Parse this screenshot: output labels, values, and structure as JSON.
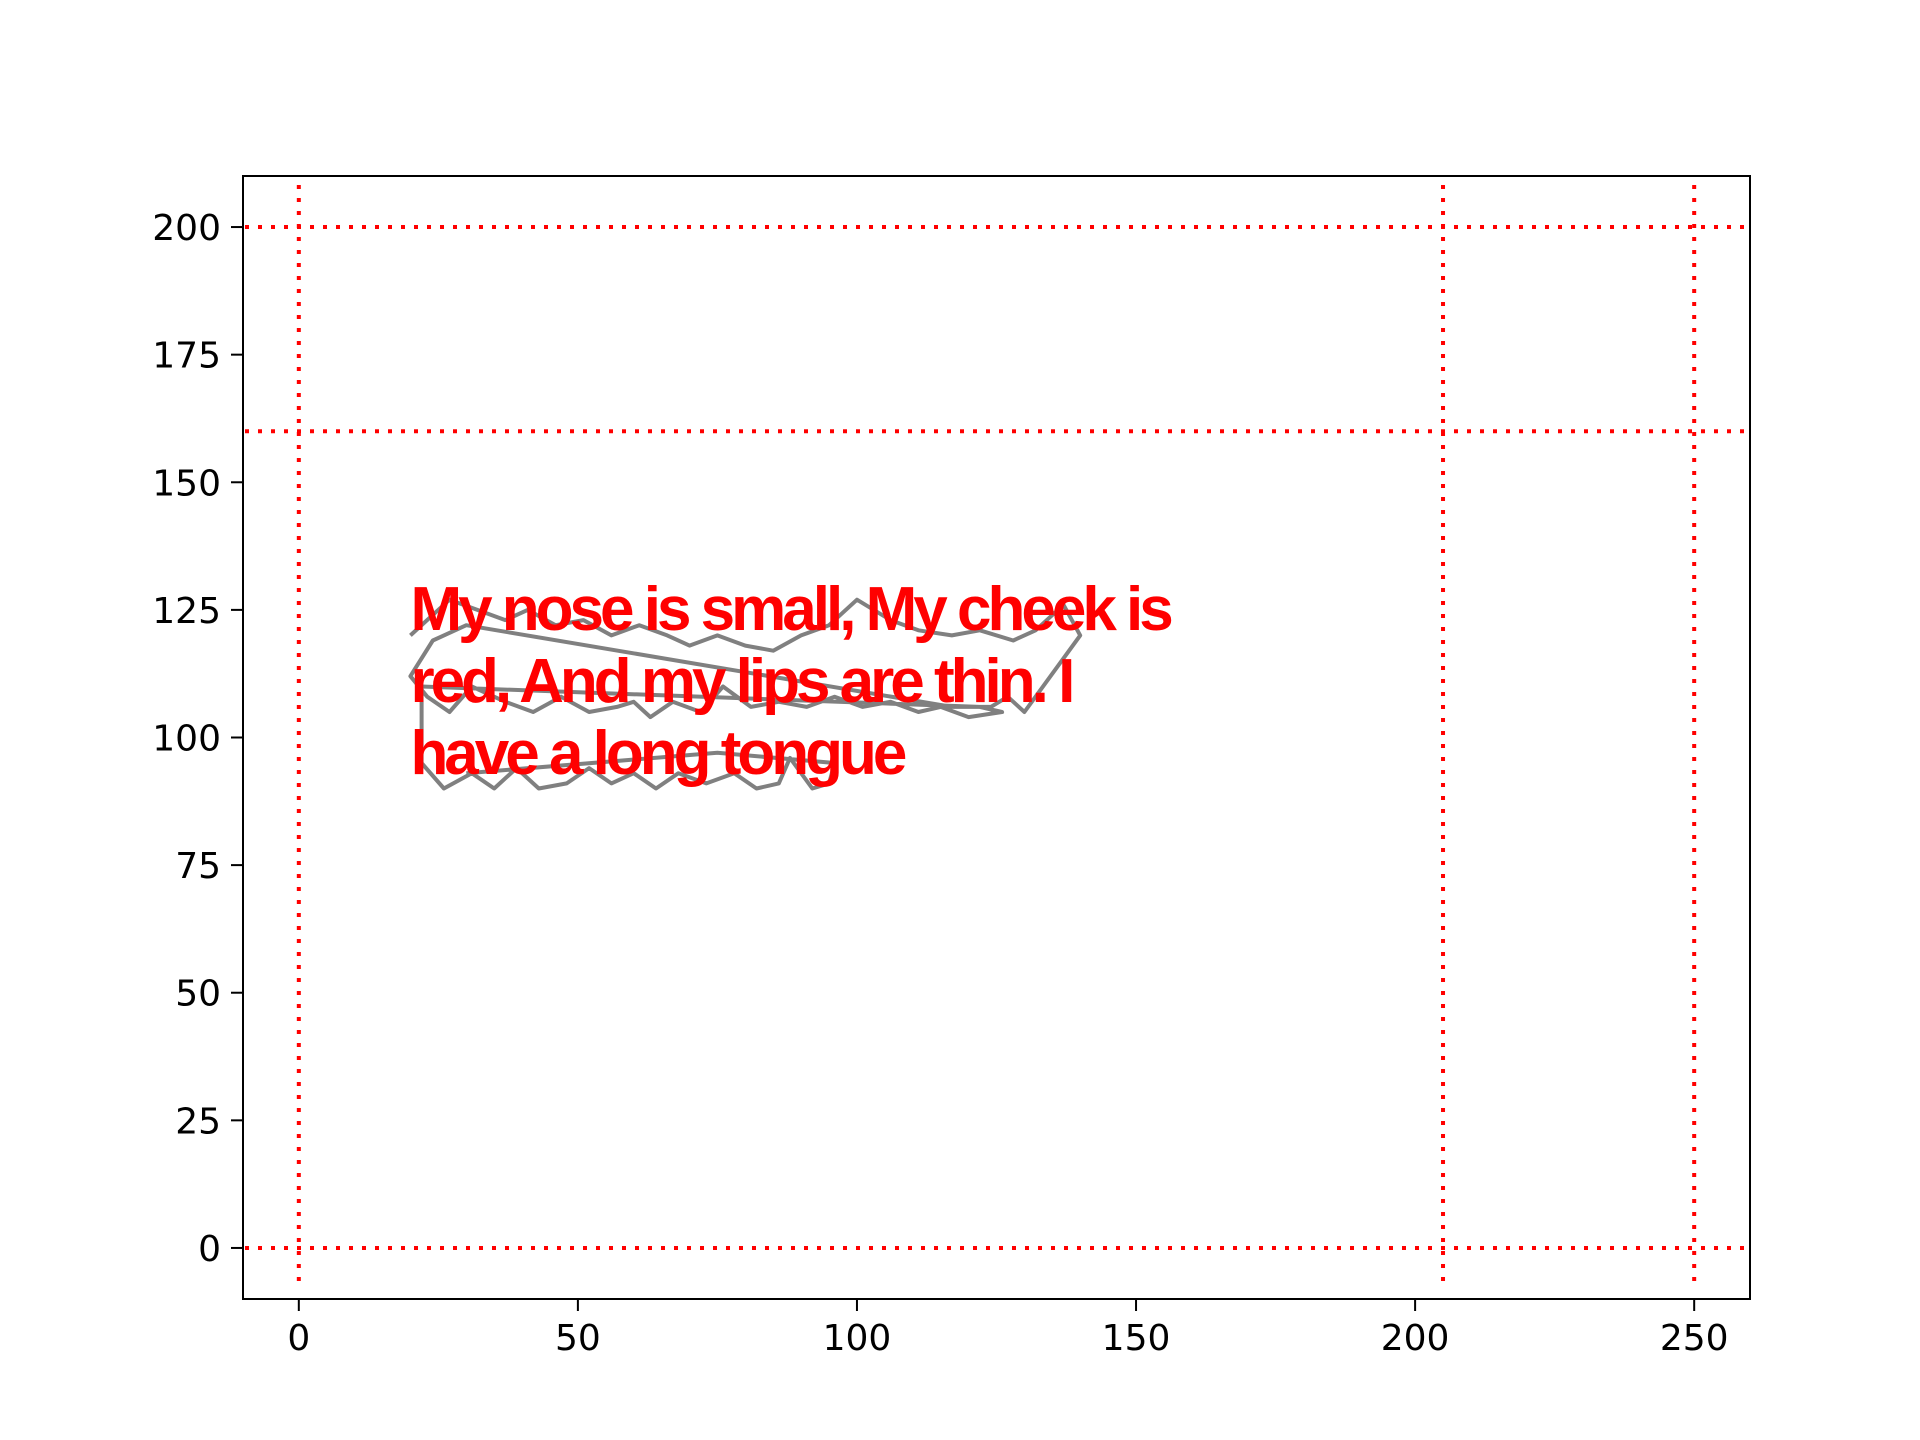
{
  "chart_data": {
    "type": "line",
    "title": "",
    "xlabel": "",
    "ylabel": "",
    "xlim": [
      -10,
      260
    ],
    "ylim": [
      -10,
      210
    ],
    "xticks": [
      0,
      50,
      100,
      150,
      200,
      250
    ],
    "yticks": [
      0,
      25,
      50,
      75,
      100,
      125,
      150,
      175,
      200
    ],
    "x_tick_labels": [
      "0",
      "50",
      "100",
      "150",
      "200",
      "250"
    ],
    "y_tick_labels": [
      "0",
      "25",
      "50",
      "75",
      "100",
      "125",
      "150",
      "175",
      "200"
    ],
    "grid": false,
    "legend": "none",
    "reference_lines": {
      "vertical_x": [
        0,
        205,
        250
      ],
      "horizontal_y": [
        0,
        160,
        200
      ],
      "color": "#ff0000",
      "style": "dotted"
    },
    "annotation": {
      "text_lines": [
        "My nose is small, My cheek is",
        "red, And my lips are thin. I",
        "have a long tongue"
      ],
      "anchor": [
        20,
        125
      ],
      "color": "#ff0000"
    },
    "series": [
      {
        "color": "#808080",
        "points": [
          [
            20,
            120
          ],
          [
            27,
            127
          ],
          [
            32,
            125
          ],
          [
            37,
            123
          ],
          [
            41,
            125
          ],
          [
            46,
            122
          ],
          [
            51,
            123
          ],
          [
            56,
            120
          ],
          [
            61,
            122
          ],
          [
            66,
            120
          ],
          [
            70,
            118
          ],
          [
            75,
            120
          ],
          [
            80,
            118
          ],
          [
            85,
            117
          ],
          [
            90,
            120
          ],
          [
            95,
            122
          ],
          [
            100,
            127
          ],
          [
            106,
            123
          ],
          [
            111,
            121
          ],
          [
            117,
            120
          ],
          [
            122,
            121
          ],
          [
            128,
            119
          ],
          [
            132,
            121
          ],
          [
            137,
            126
          ],
          [
            140,
            120
          ],
          [
            130,
            105
          ],
          [
            127,
            108
          ],
          [
            124,
            106
          ],
          [
            117,
            106
          ],
          [
            30,
            122
          ],
          [
            24,
            119
          ],
          [
            20,
            112
          ],
          [
            23,
            108
          ],
          [
            27,
            105
          ],
          [
            31,
            110
          ],
          [
            37,
            107
          ],
          [
            42,
            105
          ],
          [
            47,
            108
          ],
          [
            52,
            105
          ],
          [
            57,
            106
          ],
          [
            60,
            107
          ],
          [
            63,
            104
          ],
          [
            67,
            107
          ],
          [
            72,
            105
          ],
          [
            76,
            110
          ],
          [
            81,
            106
          ],
          [
            86,
            107
          ],
          [
            91,
            106
          ],
          [
            96,
            108
          ],
          [
            101,
            106
          ],
          [
            106,
            107
          ],
          [
            111,
            105
          ],
          [
            115,
            106
          ],
          [
            120,
            104
          ],
          [
            126,
            105
          ],
          [
            122,
            106
          ],
          [
            22,
            110
          ],
          [
            22,
            95
          ],
          [
            26,
            90
          ],
          [
            31,
            93
          ],
          [
            35,
            90
          ],
          [
            39,
            94
          ],
          [
            43,
            90
          ],
          [
            48,
            91
          ],
          [
            52,
            94
          ],
          [
            56,
            91
          ],
          [
            60,
            93
          ],
          [
            64,
            90
          ],
          [
            68,
            93
          ],
          [
            73,
            91
          ],
          [
            78,
            93
          ],
          [
            82,
            90
          ],
          [
            86,
            91
          ],
          [
            88,
            96
          ],
          [
            92,
            90
          ],
          [
            95,
            91
          ],
          [
            96,
            95
          ],
          [
            75,
            97
          ],
          [
            30,
            93
          ]
        ]
      }
    ]
  }
}
